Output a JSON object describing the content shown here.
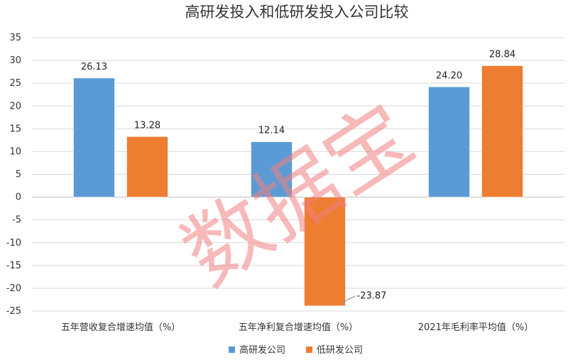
{
  "chart_data": {
    "type": "bar",
    "title": "高研发投入和低研发投入公司比较",
    "categories": [
      "五年营收复合增速均值（%）",
      "五年净利复合增速均值（%）",
      "2021年毛利率平均值（%）"
    ],
    "series": [
      {
        "name": "高研发公司",
        "color": "#5b9bd5",
        "values": [
          26.13,
          12.14,
          24.2
        ],
        "labels": [
          "26.13",
          "12.14",
          "24.20"
        ]
      },
      {
        "name": "低研发公司",
        "color": "#ed7d31",
        "values": [
          13.28,
          -23.87,
          28.84
        ],
        "labels": [
          "13.28",
          "-23.87",
          "28.84"
        ]
      }
    ],
    "ylim": [
      -25,
      35
    ],
    "yticks": [
      35,
      30,
      25,
      20,
      15,
      10,
      5,
      0,
      -5,
      -10,
      -15,
      -20,
      -25
    ],
    "grid": true,
    "legend_position": "bottom"
  },
  "watermark": {
    "text": "数据宝",
    "color": "#f08080"
  }
}
